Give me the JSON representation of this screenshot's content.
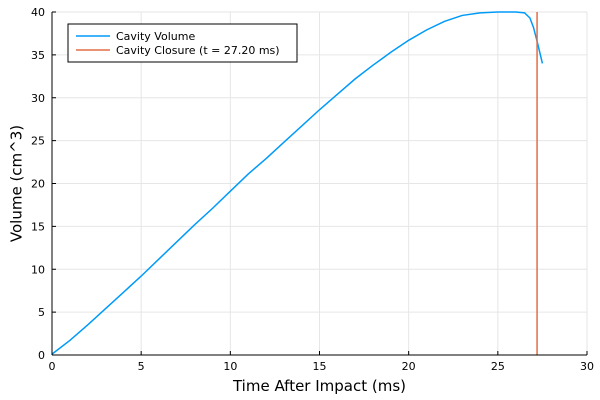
{
  "chart_data": {
    "type": "line",
    "title": "",
    "xlabel": "Time After Impact (ms)",
    "ylabel": "Volume (cm^3)",
    "xlim": [
      0,
      30
    ],
    "ylim": [
      0,
      40
    ],
    "xticks": [
      0,
      5,
      10,
      15,
      20,
      25,
      30
    ],
    "yticks": [
      0,
      5,
      10,
      15,
      20,
      25,
      30,
      35,
      40
    ],
    "grid": true,
    "legend_position": "top-left",
    "series": [
      {
        "name": "Cavity Volume",
        "color": "#009af9",
        "x": [
          0,
          1,
          2,
          3,
          4,
          5,
          6,
          7,
          8,
          9,
          10,
          11,
          12,
          13,
          14,
          15,
          16,
          17,
          18,
          19,
          20,
          21,
          22,
          23,
          24,
          25,
          25.5,
          26,
          26.5,
          26.8,
          27.0,
          27.2,
          27.5
        ],
        "y": [
          0.1,
          1.7,
          3.5,
          5.4,
          7.3,
          9.2,
          11.2,
          13.2,
          15.2,
          17.1,
          19.1,
          21.1,
          22.9,
          24.8,
          26.7,
          28.6,
          30.4,
          32.2,
          33.8,
          35.3,
          36.7,
          37.9,
          38.9,
          39.6,
          39.9,
          40.0,
          40.0,
          40.0,
          39.9,
          39.3,
          38.2,
          36.6,
          34.0
        ]
      },
      {
        "name": "Cavity Closure (t = 27.20 ms)",
        "color": "#e26f46",
        "x": [
          27.2,
          27.2
        ],
        "y": [
          0,
          40
        ]
      }
    ]
  }
}
